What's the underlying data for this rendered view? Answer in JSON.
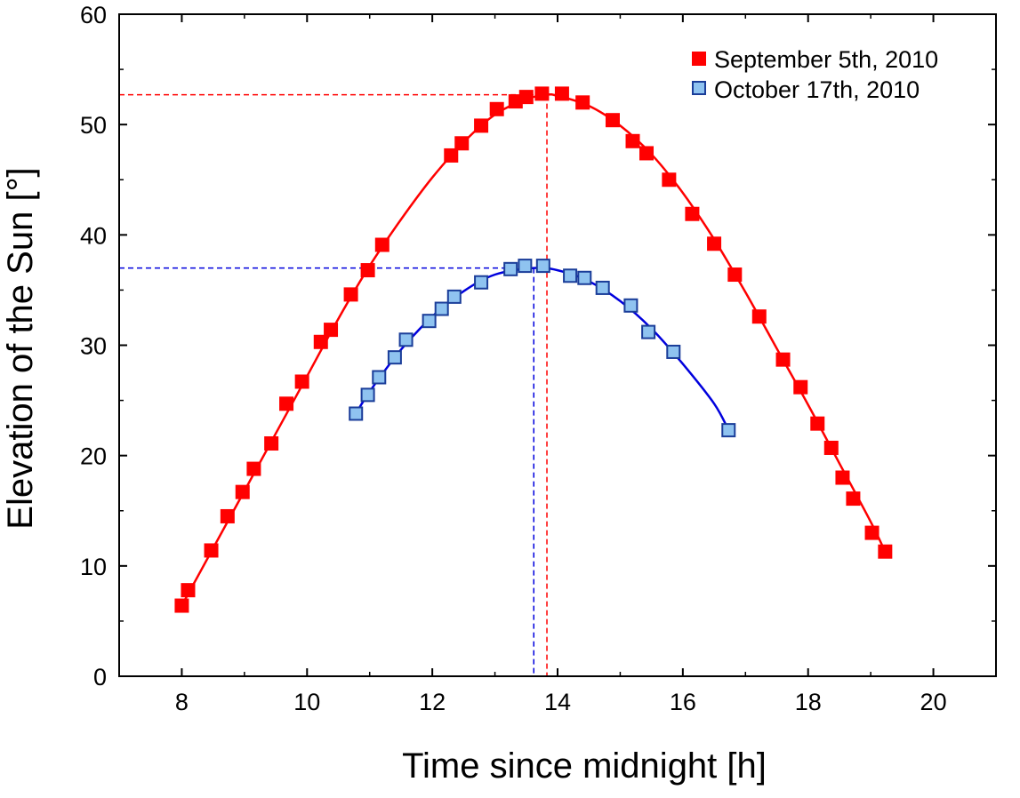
{
  "chart_data": {
    "type": "scatter",
    "xlabel": "Time since midnight [h]",
    "ylabel": "Elevation of the Sun [°]",
    "xlim": [
      7,
      21
    ],
    "ylim": [
      0,
      60
    ],
    "xticks": [
      8,
      10,
      12,
      14,
      16,
      18,
      20
    ],
    "yticks": [
      0,
      10,
      20,
      30,
      40,
      50,
      60
    ],
    "legend_position": "top-right",
    "series": [
      {
        "name": "September 5th, 2010",
        "color": "#ff0000",
        "marker_fill": "#ff0000",
        "marker_edge": "#ff0000",
        "peak_time": 13.83,
        "peak_elevation": 52.7,
        "points": [
          [
            8.0,
            6.4
          ],
          [
            8.1,
            7.8
          ],
          [
            8.47,
            11.4
          ],
          [
            8.73,
            14.5
          ],
          [
            8.97,
            16.7
          ],
          [
            9.15,
            18.8
          ],
          [
            9.43,
            21.1
          ],
          [
            9.67,
            24.7
          ],
          [
            9.92,
            26.7
          ],
          [
            10.22,
            30.3
          ],
          [
            10.38,
            31.4
          ],
          [
            10.7,
            34.6
          ],
          [
            10.97,
            36.8
          ],
          [
            11.2,
            39.1
          ],
          [
            12.3,
            47.2
          ],
          [
            12.47,
            48.3
          ],
          [
            12.78,
            49.9
          ],
          [
            13.03,
            51.4
          ],
          [
            13.33,
            52.1
          ],
          [
            13.5,
            52.5
          ],
          [
            13.75,
            52.8
          ],
          [
            14.07,
            52.8
          ],
          [
            14.4,
            52.0
          ],
          [
            14.88,
            50.4
          ],
          [
            15.2,
            48.5
          ],
          [
            15.42,
            47.4
          ],
          [
            15.78,
            45.0
          ],
          [
            16.15,
            41.9
          ],
          [
            16.5,
            39.2
          ],
          [
            16.83,
            36.4
          ],
          [
            17.22,
            32.6
          ],
          [
            17.6,
            28.7
          ],
          [
            17.88,
            26.2
          ],
          [
            18.15,
            22.9
          ],
          [
            18.37,
            20.7
          ],
          [
            18.55,
            18.0
          ],
          [
            18.72,
            16.1
          ],
          [
            19.02,
            13.0
          ],
          [
            19.23,
            11.3
          ]
        ],
        "fit": [
          [
            8.0,
            6.4
          ],
          [
            8.5,
            11.6
          ],
          [
            9.0,
            16.8
          ],
          [
            9.5,
            22.0
          ],
          [
            10.0,
            27.2
          ],
          [
            10.5,
            32.4
          ],
          [
            11.0,
            37.2
          ],
          [
            11.5,
            41.4
          ],
          [
            12.0,
            45.2
          ],
          [
            12.5,
            48.4
          ],
          [
            13.0,
            50.9
          ],
          [
            13.5,
            52.3
          ],
          [
            13.83,
            52.7
          ],
          [
            14.0,
            52.6
          ],
          [
            14.5,
            51.7
          ],
          [
            15.0,
            49.9
          ],
          [
            15.5,
            47.3
          ],
          [
            16.0,
            43.8
          ],
          [
            16.5,
            39.6
          ],
          [
            17.0,
            34.8
          ],
          [
            17.5,
            29.7
          ],
          [
            18.0,
            24.6
          ],
          [
            18.5,
            19.3
          ],
          [
            19.0,
            14.0
          ],
          [
            19.23,
            11.3
          ]
        ]
      },
      {
        "name": "October 17th, 2010",
        "color": "#0000dd",
        "marker_fill": "#8fc3f0",
        "marker_edge": "#1a3d99",
        "peak_time": 13.62,
        "peak_elevation": 37.0,
        "points": [
          [
            10.78,
            23.8
          ],
          [
            10.97,
            25.5
          ],
          [
            11.15,
            27.1
          ],
          [
            11.4,
            28.9
          ],
          [
            11.58,
            30.5
          ],
          [
            11.95,
            32.2
          ],
          [
            12.15,
            33.3
          ],
          [
            12.35,
            34.4
          ],
          [
            12.78,
            35.7
          ],
          [
            13.25,
            36.9
          ],
          [
            13.48,
            37.2
          ],
          [
            13.77,
            37.2
          ],
          [
            14.2,
            36.3
          ],
          [
            14.43,
            36.1
          ],
          [
            14.72,
            35.2
          ],
          [
            15.17,
            33.6
          ],
          [
            15.45,
            31.2
          ],
          [
            15.85,
            29.4
          ],
          [
            16.73,
            22.3
          ]
        ],
        "fit": [
          [
            10.78,
            23.8
          ],
          [
            11.0,
            25.8
          ],
          [
            11.5,
            29.6
          ],
          [
            12.0,
            32.6
          ],
          [
            12.5,
            34.9
          ],
          [
            13.0,
            36.4
          ],
          [
            13.62,
            37.0
          ],
          [
            14.0,
            36.8
          ],
          [
            14.5,
            35.8
          ],
          [
            15.0,
            34.0
          ],
          [
            15.5,
            31.5
          ],
          [
            16.0,
            28.3
          ],
          [
            16.5,
            24.7
          ],
          [
            16.73,
            22.3
          ]
        ]
      }
    ]
  }
}
